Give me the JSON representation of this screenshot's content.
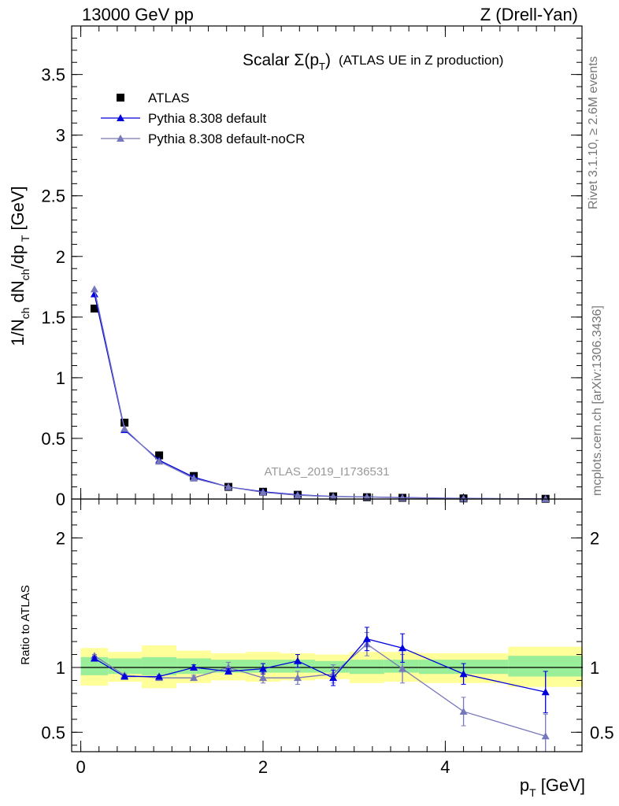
{
  "header": {
    "left": "13000 GeV pp",
    "right": "Z (Drell-Yan)"
  },
  "side_notes": {
    "rivet": "Rivet 3.1.10, ≥ 2.6M events",
    "mcplots": "mcplots.cern.ch [arXiv:1306.3436]"
  },
  "chart_data": [
    {
      "type": "scatter",
      "title_main": "Scalar Σ(p",
      "title_sub": "T",
      "title_close": ")",
      "title_tail": "(ATLAS UE in Z production)",
      "watermark": "ATLAS_2019_I1736531",
      "ylabel": "1/N_ch dN_ch/dp_T [GeV]",
      "xlim": [
        -0.1,
        5.5
      ],
      "ylim": [
        0,
        3.9
      ],
      "yticks": [
        "0",
        "0.5",
        "1",
        "1.5",
        "2",
        "2.5",
        "3",
        "3.5"
      ],
      "legend_position": "top-left",
      "x": [
        0.15,
        0.48,
        0.86,
        1.24,
        1.62,
        2.0,
        2.38,
        2.77,
        3.14,
        3.53,
        4.2,
        5.1
      ],
      "series": [
        {
          "name": "ATLAS",
          "color": "#000000",
          "marker": "square",
          "values": [
            1.57,
            0.63,
            0.36,
            0.19,
            0.1,
            0.06,
            0.035,
            0.022,
            0.015,
            0.01,
            0.005,
            0.002
          ]
        },
        {
          "name": "Pythia 8.308 default",
          "color": "#0000dd",
          "marker": "triangle",
          "values": [
            1.69,
            0.57,
            0.32,
            0.18,
            0.1,
            0.06,
            0.035,
            0.021,
            0.018,
            0.012,
            0.005,
            0.0016
          ]
        },
        {
          "name": "Pythia 8.308 default-noCR",
          "color": "#7777bb",
          "marker": "triangle",
          "values": [
            1.73,
            0.58,
            0.31,
            0.17,
            0.1,
            0.055,
            0.031,
            0.02,
            0.017,
            0.01,
            0.003,
            0.001
          ]
        }
      ]
    },
    {
      "type": "scatter",
      "ylabel": "Ratio to ATLAS",
      "xlabel": "p_T [GeV]",
      "xlim": [
        -0.1,
        5.5
      ],
      "ylim": [
        0.35,
        2.3
      ],
      "yticks": [
        "0.5",
        "1",
        "2"
      ],
      "xticks": [
        "0",
        "2",
        "4"
      ],
      "reference": 1,
      "bands": [
        {
          "x0": 0.0,
          "x1": 0.3,
          "green": [
            0.94,
            1.08
          ],
          "yellow": [
            0.86,
            1.15
          ]
        },
        {
          "x0": 0.3,
          "x1": 0.67,
          "green": [
            0.95,
            1.07
          ],
          "yellow": [
            0.89,
            1.12
          ]
        },
        {
          "x0": 0.67,
          "x1": 1.05,
          "green": [
            0.94,
            1.08
          ],
          "yellow": [
            0.84,
            1.17
          ]
        },
        {
          "x0": 1.05,
          "x1": 1.43,
          "green": [
            0.95,
            1.07
          ],
          "yellow": [
            0.88,
            1.13
          ]
        },
        {
          "x0": 1.43,
          "x1": 1.81,
          "green": [
            0.96,
            1.06
          ],
          "yellow": [
            0.9,
            1.11
          ]
        },
        {
          "x0": 1.81,
          "x1": 2.19,
          "green": [
            0.96,
            1.06
          ],
          "yellow": [
            0.89,
            1.12
          ]
        },
        {
          "x0": 2.19,
          "x1": 2.57,
          "green": [
            0.96,
            1.06
          ],
          "yellow": [
            0.9,
            1.11
          ]
        },
        {
          "x0": 2.57,
          "x1": 2.95,
          "green": [
            0.96,
            1.05
          ],
          "yellow": [
            0.91,
            1.1
          ]
        },
        {
          "x0": 2.95,
          "x1": 3.33,
          "green": [
            0.95,
            1.06
          ],
          "yellow": [
            0.88,
            1.12
          ]
        },
        {
          "x0": 3.33,
          "x1": 3.71,
          "green": [
            0.96,
            1.06
          ],
          "yellow": [
            0.89,
            1.12
          ]
        },
        {
          "x0": 3.71,
          "x1": 4.69,
          "green": [
            0.95,
            1.06
          ],
          "yellow": [
            0.88,
            1.11
          ]
        },
        {
          "x0": 4.69,
          "x1": 5.51,
          "green": [
            0.93,
            1.09
          ],
          "yellow": [
            0.85,
            1.16
          ]
        }
      ],
      "series": [
        {
          "name": "Pythia 8.308 default",
          "color": "#0000dd",
          "values": [
            1.07,
            0.93,
            0.93,
            1.0,
            0.97,
            0.99,
            1.05,
            0.92,
            1.22,
            1.15,
            0.95,
            0.81
          ],
          "errors": [
            0.01,
            0.01,
            0.01,
            0.02,
            0.02,
            0.04,
            0.05,
            0.06,
            0.09,
            0.11,
            0.08,
            0.16
          ]
        },
        {
          "name": "Pythia 8.308 default-noCR",
          "color": "#7777bb",
          "values": [
            1.09,
            0.94,
            0.92,
            0.92,
            1.0,
            0.92,
            0.92,
            0.95,
            1.18,
            0.99,
            0.66,
            0.47
          ],
          "errors": [
            0.01,
            0.01,
            0.01,
            0.02,
            0.04,
            0.04,
            0.05,
            0.07,
            0.09,
            0.11,
            0.11,
            0.17
          ]
        }
      ]
    }
  ]
}
